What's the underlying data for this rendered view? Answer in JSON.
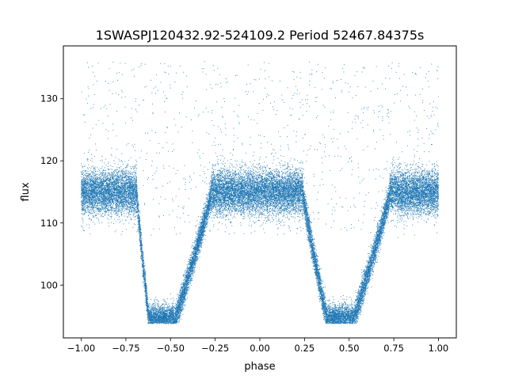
{
  "chart_data": {
    "type": "scatter",
    "title": "1SWASPJ120432.92-524109.2 Period 52467.84375s",
    "xlabel": "phase",
    "ylabel": "flux",
    "xlim": [
      -1.1,
      1.1
    ],
    "ylim": [
      91.5,
      138.5
    ],
    "x_ticks": [
      -1.0,
      -0.75,
      -0.5,
      -0.25,
      0.0,
      0.25,
      0.5,
      0.75,
      1.0
    ],
    "x_tick_labels": [
      "−1.00",
      "−0.75",
      "−0.50",
      "−0.25",
      "0.00",
      "0.25",
      "0.50",
      "0.75",
      "1.00"
    ],
    "y_ticks": [
      100,
      110,
      120,
      130
    ],
    "y_tick_labels": [
      "100",
      "110",
      "120",
      "130"
    ],
    "grid": false,
    "legend": "none",
    "point_color": "#1f77b4",
    "series": [
      {
        "phase_range": [
          -1.0,
          1.0
        ],
        "baseline_flux": 115,
        "baseline_scatter": 1.8,
        "eclipses": [
          {
            "center": -0.55,
            "ingress_start": -0.69,
            "egress_end": -0.27,
            "bottom_half_width": 0.07,
            "min_flux": 94
          },
          {
            "center": 0.45,
            "ingress_start": 0.24,
            "egress_end": 0.73,
            "bottom_half_width": 0.07,
            "min_flux": 94
          }
        ],
        "point_count": 28000
      }
    ]
  }
}
